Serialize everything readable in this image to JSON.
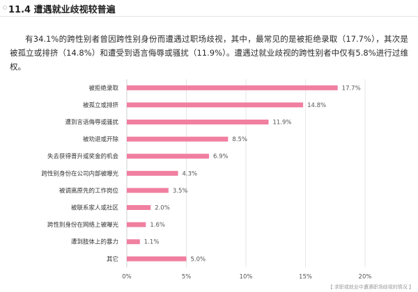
{
  "section": {
    "title": "11.4 遭遇就业歧视较普遍"
  },
  "paragraph": "有34.1%的跨性别者曾因跨性别身份而遭遇过职场歧视，其中，最常见的是被拒绝录取（17.7%），其次是被孤立或排挤（14.8%）和遭受到语言侮辱或骚扰（11.9%）。遭遇过就业歧视的跨性别者中仅有5.8%进行过维权。",
  "caption": "【 求职或就业中遭遇职场歧视的情况 】",
  "colors": {
    "bar": "#f07fa0",
    "grid": "#e6e6e6",
    "axis": "#cfcfcf"
  },
  "chart_data": {
    "type": "bar",
    "orientation": "horizontal",
    "categories": [
      "被拒绝录取",
      "被孤立或排挤",
      "遭到言语侮辱或骚扰",
      "被劝退或开除",
      "失去获得晋升或奖金的机会",
      "跨性别身份在公司内部被曝光",
      "被调离原先的工作岗位",
      "被联系家人或社区",
      "跨性别身份在网络上被曝光",
      "遭到肢体上的暴力",
      "其它"
    ],
    "values": [
      17.7,
      14.8,
      11.9,
      8.5,
      6.9,
      4.3,
      3.5,
      2.0,
      1.6,
      1.1,
      5.0
    ],
    "value_labels": [
      "17.7%",
      "14.8%",
      "11.9%",
      "8.5%",
      "6.9%",
      "4.3%",
      "3.5%",
      "2.0%",
      "1.6%",
      "1.1%",
      "5.0%"
    ],
    "xlim": [
      0,
      20
    ],
    "xticks": [
      0,
      5,
      10,
      15,
      20
    ],
    "xtick_labels": [
      "0%",
      "5%",
      "10%",
      "15%",
      "20%"
    ],
    "grid": true,
    "legend": false
  }
}
